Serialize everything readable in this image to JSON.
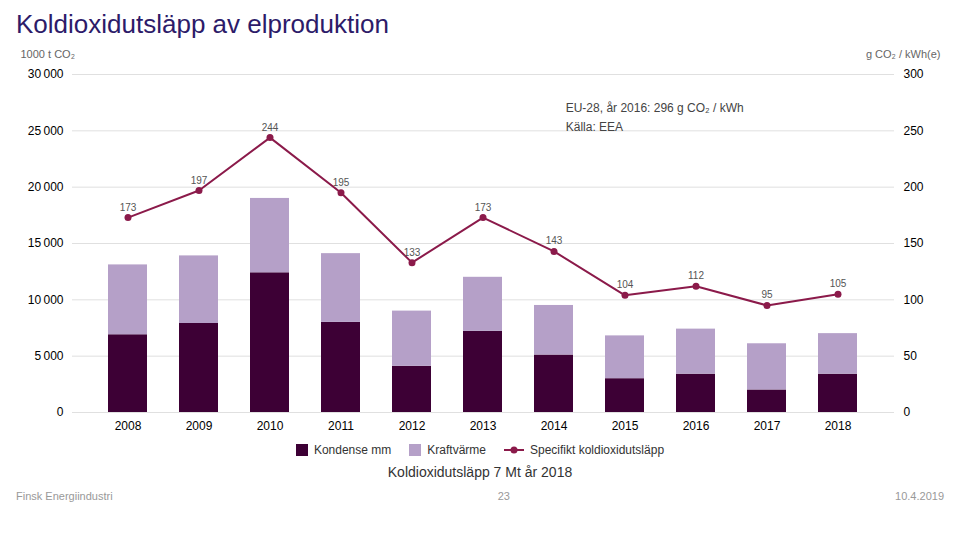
{
  "chart_data": {
    "type": "bar",
    "title": "Koldioxidutsläpp av elproduktion",
    "subtitle": "Koldioxidutsläpp 7 Mt år 2018",
    "annotations": [
      "EU-28, år 2016: 296 g CO₂ / kWh",
      "Källa: EEA"
    ],
    "footer": [
      "Finsk Energiindustri",
      "23",
      "10.4.2019"
    ],
    "ylabel": "1000 t CO₂",
    "y2label": "g CO₂ / kWh(e)",
    "categories": [
      "2008",
      "2009",
      "2010",
      "2011",
      "2012",
      "2013",
      "2014",
      "2015",
      "2016",
      "2017",
      "2018"
    ],
    "series": [
      {
        "name": "Kondense mm",
        "color": "#3d0035",
        "values": [
          6900,
          7900,
          12400,
          8000,
          4100,
          7200,
          5100,
          3000,
          3400,
          2000,
          3400
        ]
      },
      {
        "name": "Kraftvärme",
        "color": "#b5a0c8",
        "values": [
          6200,
          6000,
          6600,
          6100,
          4900,
          4800,
          4400,
          3800,
          4000,
          4100,
          3600
        ]
      },
      {
        "name": "Specifikt koldioxidutsläpp",
        "color": "#8b1a4a",
        "type": "line",
        "axis": "y2",
        "marker": "circle",
        "data_labels": true,
        "values": [
          173,
          197,
          244,
          195,
          133,
          173,
          143,
          104,
          112,
          95,
          105
        ]
      }
    ],
    "stacked": true,
    "ylim": [
      0,
      30000
    ],
    "yticks": [
      0,
      {
        "value": 5000,
        "label": "5 000"
      },
      {
        "value": 10000,
        "label": "10 000"
      },
      {
        "value": 15000,
        "label": "15 000"
      },
      {
        "value": 20000,
        "label": "20 000"
      },
      {
        "value": 25000,
        "label": "25 000"
      },
      {
        "value": 30000,
        "label": "30 000"
      }
    ],
    "y2lim": [
      0,
      300
    ],
    "y2ticks": [
      0,
      50,
      100,
      150,
      200,
      250,
      300
    ],
    "grid": true,
    "legend": "bottom"
  }
}
